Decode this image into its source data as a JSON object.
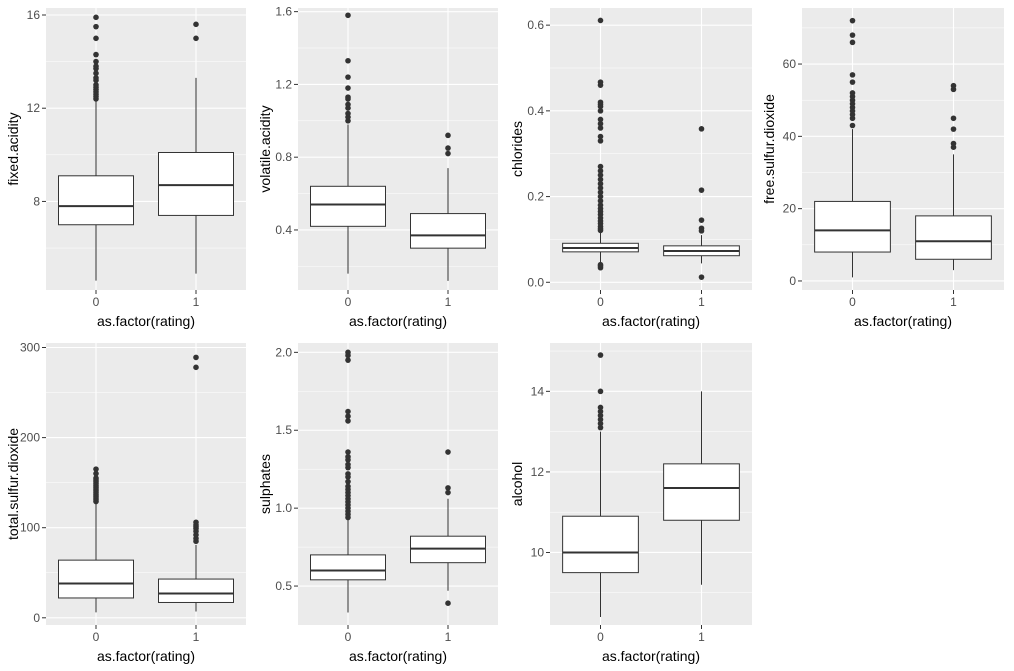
{
  "chart_data": [
    {
      "type": "boxplot",
      "xlabel": "as.factor(rating)",
      "ylabel": "fixed.acidity",
      "categories": [
        "0",
        "1"
      ],
      "ylim": [
        4.2,
        16.3
      ],
      "yticks": [
        8,
        12,
        16
      ],
      "boxes": [
        {
          "group": "0",
          "lower": 4.6,
          "q1": 7.0,
          "median": 7.8,
          "q3": 9.1,
          "upper": 12.3,
          "outliers": [
            12.4,
            12.5,
            12.6,
            12.7,
            12.8,
            12.9,
            13.0,
            13.2,
            13.3,
            13.5,
            13.7,
            13.8,
            14.0,
            14.3,
            15.0,
            15.5,
            15.9
          ]
        },
        {
          "group": "1",
          "lower": 4.9,
          "q1": 7.4,
          "median": 8.7,
          "q3": 10.1,
          "upper": 13.3,
          "outliers": [
            15.0,
            15.6
          ]
        }
      ]
    },
    {
      "type": "boxplot",
      "xlabel": "as.factor(rating)",
      "ylabel": "volatile.acidity",
      "categories": [
        "0",
        "1"
      ],
      "ylim": [
        0.07,
        1.62
      ],
      "yticks": [
        0.4,
        0.8,
        1.2,
        1.6
      ],
      "boxes": [
        {
          "group": "0",
          "lower": 0.16,
          "q1": 0.42,
          "median": 0.54,
          "q3": 0.64,
          "upper": 0.98,
          "outliers": [
            1.0,
            1.02,
            1.04,
            1.07,
            1.09,
            1.12,
            1.13,
            1.18,
            1.24,
            1.33,
            1.58
          ]
        },
        {
          "group": "1",
          "lower": 0.12,
          "q1": 0.3,
          "median": 0.37,
          "q3": 0.49,
          "upper": 0.74,
          "outliers": [
            0.82,
            0.85,
            0.92
          ]
        }
      ]
    },
    {
      "type": "boxplot",
      "xlabel": "as.factor(rating)",
      "ylabel": "chlorides",
      "categories": [
        "0",
        "1"
      ],
      "ylim": [
        -0.018,
        0.64
      ],
      "yticks": [
        0.0,
        0.2,
        0.4,
        0.6
      ],
      "ytick_labels": [
        "0.0",
        "0.2",
        "0.4",
        "0.6"
      ],
      "boxes": [
        {
          "group": "0",
          "lower": 0.045,
          "q1": 0.071,
          "median": 0.08,
          "q3": 0.091,
          "upper": 0.119,
          "outliers": [
            0.034,
            0.038,
            0.041,
            0.121,
            0.125,
            0.13,
            0.137,
            0.143,
            0.15,
            0.158,
            0.165,
            0.172,
            0.18,
            0.19,
            0.2,
            0.21,
            0.22,
            0.23,
            0.24,
            0.25,
            0.26,
            0.27,
            0.33,
            0.34,
            0.36,
            0.37,
            0.38,
            0.4,
            0.41,
            0.415,
            0.42,
            0.46,
            0.467,
            0.611
          ]
        },
        {
          "group": "1",
          "lower": 0.044,
          "q1": 0.062,
          "median": 0.073,
          "q3": 0.085,
          "upper": 0.11,
          "outliers": [
            0.012,
            0.12,
            0.126,
            0.145,
            0.215,
            0.358
          ]
        }
      ]
    },
    {
      "type": "boxplot",
      "xlabel": "as.factor(rating)",
      "ylabel": "free.sulfur.dioxide",
      "categories": [
        "0",
        "1"
      ],
      "ylim": [
        -2.5,
        75.5
      ],
      "yticks": [
        0,
        20,
        40,
        60
      ],
      "boxes": [
        {
          "group": "0",
          "lower": 1,
          "q1": 8,
          "median": 14,
          "q3": 22,
          "upper": 42,
          "outliers": [
            43,
            45,
            46,
            47,
            48,
            49,
            50,
            51,
            52,
            55,
            57,
            66,
            68,
            72
          ]
        },
        {
          "group": "1",
          "lower": 3,
          "q1": 6,
          "median": 11,
          "q3": 18,
          "upper": 35,
          "outliers": [
            37,
            38,
            42,
            45,
            53,
            54
          ]
        }
      ]
    },
    {
      "type": "boxplot",
      "xlabel": "as.factor(rating)",
      "ylabel": "total.sulfur.dioxide",
      "categories": [
        "0",
        "1"
      ],
      "ylim": [
        -8,
        305
      ],
      "yticks": [
        0,
        100,
        200,
        300
      ],
      "boxes": [
        {
          "group": "0",
          "lower": 6,
          "q1": 22,
          "median": 38,
          "q3": 64,
          "upper": 127,
          "outliers": [
            129,
            131,
            133,
            135,
            137,
            139,
            141,
            143,
            145,
            147,
            149,
            151,
            153,
            155,
            160,
            165
          ]
        },
        {
          "group": "1",
          "lower": 7,
          "q1": 17,
          "median": 27,
          "q3": 43,
          "upper": 81,
          "outliers": [
            85,
            88,
            92,
            96,
            99,
            101,
            103,
            106,
            278,
            289
          ]
        }
      ]
    },
    {
      "type": "boxplot",
      "xlabel": "as.factor(rating)",
      "ylabel": "sulphates",
      "categories": [
        "0",
        "1"
      ],
      "ylim": [
        0.25,
        2.06
      ],
      "yticks": [
        0.5,
        1.0,
        1.5,
        2.0
      ],
      "boxes": [
        {
          "group": "0",
          "lower": 0.33,
          "q1": 0.54,
          "median": 0.6,
          "q3": 0.7,
          "upper": 0.93,
          "outliers": [
            0.94,
            0.96,
            0.98,
            1.0,
            1.02,
            1.04,
            1.06,
            1.08,
            1.1,
            1.12,
            1.14,
            1.17,
            1.2,
            1.22,
            1.26,
            1.28,
            1.31,
            1.33,
            1.36,
            1.56,
            1.59,
            1.62,
            1.95,
            1.98,
            2.0
          ]
        },
        {
          "group": "1",
          "lower": 0.47,
          "q1": 0.65,
          "median": 0.74,
          "q3": 0.82,
          "upper": 1.06,
          "outliers": [
            0.39,
            1.1,
            1.13,
            1.36
          ]
        }
      ]
    },
    {
      "type": "boxplot",
      "xlabel": "as.factor(rating)",
      "ylabel": "alcohol",
      "categories": [
        "0",
        "1"
      ],
      "ylim": [
        8.2,
        15.2
      ],
      "yticks": [
        10,
        12,
        14
      ],
      "boxes": [
        {
          "group": "0",
          "lower": 8.4,
          "q1": 9.5,
          "median": 10.0,
          "q3": 10.9,
          "upper": 13.0,
          "outliers": [
            13.1,
            13.2,
            13.3,
            13.4,
            13.5,
            13.6,
            14.0,
            14.9
          ]
        },
        {
          "group": "1",
          "lower": 9.2,
          "q1": 10.8,
          "median": 11.6,
          "q3": 12.2,
          "upper": 14.0,
          "outliers": []
        }
      ]
    }
  ]
}
